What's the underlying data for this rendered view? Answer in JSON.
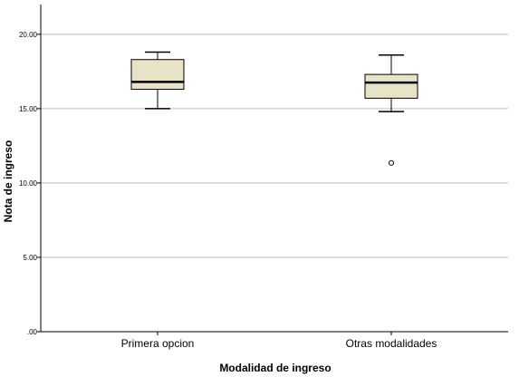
{
  "chart_data": {
    "type": "boxplot",
    "xlabel": "Modalidad de ingreso",
    "ylabel": "Nota de ingreso",
    "ylim": [
      0,
      22
    ],
    "yticks": [
      0,
      5,
      10,
      15,
      20
    ],
    "ytick_labels": [
      ".00",
      "5.00",
      "10.00",
      "15.00",
      "20.00"
    ],
    "grid": "horizontal",
    "box_fill": "#e8e2c6",
    "categories": [
      "Primera opcion",
      "Otras modalidades"
    ],
    "boxes": [
      {
        "whisker_low": 15.0,
        "q1": 16.3,
        "median": 16.8,
        "q3": 18.3,
        "whisker_high": 18.8,
        "outliers": []
      },
      {
        "whisker_low": 14.8,
        "q1": 15.7,
        "median": 16.75,
        "q3": 17.3,
        "whisker_high": 18.6,
        "outliers": [
          11.35
        ]
      }
    ]
  }
}
